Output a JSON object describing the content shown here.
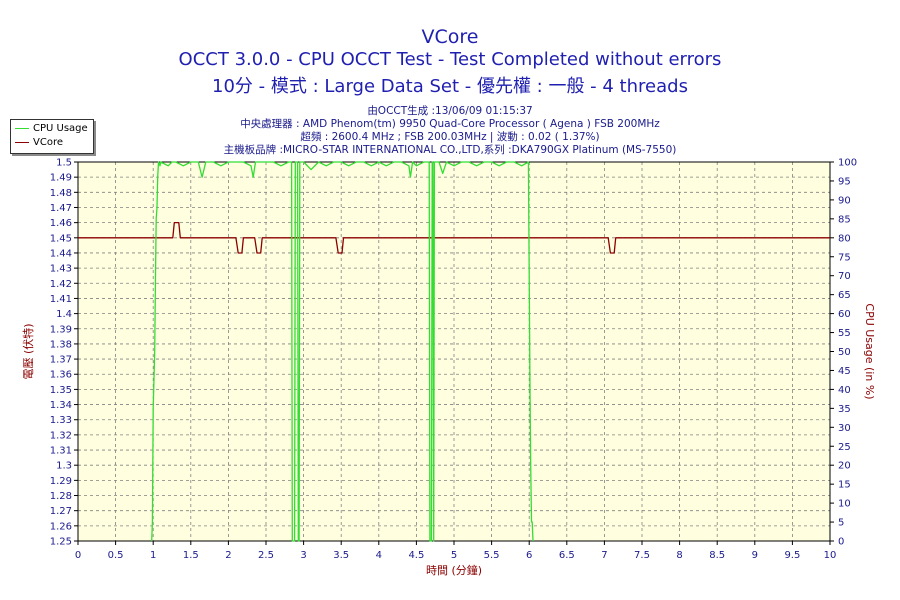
{
  "header": {
    "title": "VCore",
    "subtitle1": "OCCT 3.0.0 - CPU OCCT Test - Test Completed without errors",
    "subtitle2": "10分 - 模式 : Large Data Set - 優先權 : 一般 - 4 threads",
    "info1": "由OCCT生成 :13/06/09 01:15:37",
    "info2": "中央處理器 : AMD Phenom(tm) 9950 Quad-Core Processor ( Agena ) FSB 200MHz",
    "info3": "超頻 : 2600.4 MHz ; FSB 200.03MHz | 波動 : 0.02 ( 1.37%)",
    "info4": "主機板品牌 :MICRO-STAR INTERNATIONAL CO.,LTD,系列 :DKA790GX Platinum (MS-7550)"
  },
  "legend": [
    {
      "name": "CPU Usage",
      "color": "#33dd33"
    },
    {
      "name": "VCore",
      "color": "#8b0000"
    }
  ],
  "colors": {
    "plot_bg": "#ffffe0",
    "grid": "#808080",
    "vcore": "#8b0000",
    "cpu": "#33dd33",
    "axis_text": "#1a1a8c",
    "left_label": "#8b0000",
    "right_label": "#8b0000"
  },
  "chart_data": {
    "type": "line",
    "xlabel": "時間 (分鐘)",
    "ylabel_left": "電壓 (伏特)",
    "ylabel_right": "CPU Usage (in %)",
    "xlim": [
      0,
      10
    ],
    "ylim_left": [
      1.25,
      1.5
    ],
    "ylim_right": [
      0,
      100
    ],
    "grid": true,
    "legend_position": "top-left",
    "x_ticks": [
      "0",
      "0.5",
      "1",
      "1.5",
      "2",
      "2.5",
      "3",
      "3.5",
      "4",
      "4.5",
      "5",
      "5.5",
      "6",
      "6.5",
      "7",
      "7.5",
      "8",
      "8.5",
      "9",
      "9.5",
      "10"
    ],
    "y_left_ticks": [
      "1.25",
      "1.26",
      "1.27",
      "1.28",
      "1.29",
      "1.3",
      "1.31",
      "1.32",
      "1.33",
      "1.34",
      "1.35",
      "1.36",
      "1.37",
      "1.38",
      "1.39",
      "1.4",
      "1.41",
      "1.42",
      "1.43",
      "1.44",
      "1.45",
      "1.46",
      "1.47",
      "1.48",
      "1.49",
      "1.5"
    ],
    "y_right_ticks": [
      "0",
      "5",
      "10",
      "15",
      "20",
      "25",
      "30",
      "35",
      "40",
      "45",
      "50",
      "55",
      "60",
      "65",
      "70",
      "75",
      "80",
      "85",
      "90",
      "95",
      "100"
    ],
    "series": [
      {
        "name": "VCore",
        "axis": "left",
        "x": [
          0,
          1.26,
          1.28,
          1.31,
          1.34,
          1.36,
          2.1,
          2.13,
          2.15,
          2.18,
          2.2,
          2.35,
          2.38,
          2.4,
          2.43,
          2.45,
          3.43,
          3.46,
          3.48,
          3.51,
          3.53,
          7.05,
          7.08,
          7.1,
          7.13,
          7.15,
          10
        ],
        "y": [
          1.45,
          1.45,
          1.46,
          1.46,
          1.46,
          1.45,
          1.45,
          1.44,
          1.44,
          1.44,
          1.45,
          1.45,
          1.44,
          1.44,
          1.44,
          1.45,
          1.45,
          1.44,
          1.44,
          1.44,
          1.45,
          1.45,
          1.44,
          1.44,
          1.44,
          1.45,
          1.45
        ]
      },
      {
        "name": "CPU Usage",
        "axis": "right",
        "x": [
          0.98,
          0.99,
          1.0,
          1.02,
          1.03,
          1.04,
          1.05,
          1.06,
          1.07,
          1.09,
          1.1,
          1.2,
          1.25,
          1.3,
          1.4,
          1.5,
          1.6,
          1.65,
          1.7,
          1.8,
          1.9,
          2.0,
          2.1,
          2.2,
          2.3,
          2.33,
          2.36,
          2.5,
          2.6,
          2.7,
          2.8,
          2.84,
          2.85,
          2.86,
          2.88,
          2.89,
          2.92,
          2.93,
          2.94,
          2.95,
          2.96,
          3.0,
          3.1,
          3.2,
          3.3,
          3.4,
          3.5,
          3.6,
          3.7,
          3.8,
          3.9,
          4.0,
          4.1,
          4.2,
          4.3,
          4.4,
          4.42,
          4.45,
          4.5,
          4.6,
          4.67,
          4.68,
          4.69,
          4.7,
          4.71,
          4.72,
          4.73,
          4.74,
          4.8,
          4.85,
          4.9,
          5.0,
          5.1,
          5.2,
          5.3,
          5.4,
          5.5,
          5.6,
          5.7,
          5.8,
          5.9,
          5.99,
          6.0,
          6.01,
          6.02,
          6.03,
          6.04,
          6.05
        ],
        "y": [
          0,
          5,
          35,
          50,
          70,
          85,
          88,
          96,
          100,
          99,
          100,
          99,
          100,
          100,
          99,
          100,
          100,
          96,
          100,
          100,
          99,
          100,
          100,
          100,
          99,
          96,
          100,
          100,
          100,
          99,
          100,
          100,
          0,
          0,
          0,
          100,
          100,
          0,
          0,
          100,
          100,
          100,
          98,
          100,
          99,
          100,
          100,
          99,
          100,
          100,
          99,
          100,
          99,
          100,
          100,
          99,
          96,
          100,
          99,
          100,
          100,
          0,
          0,
          0,
          100,
          100,
          0,
          100,
          100,
          97,
          100,
          99,
          100,
          100,
          99,
          100,
          100,
          99,
          100,
          100,
          99,
          100,
          70,
          40,
          20,
          5,
          5,
          0
        ]
      }
    ]
  }
}
